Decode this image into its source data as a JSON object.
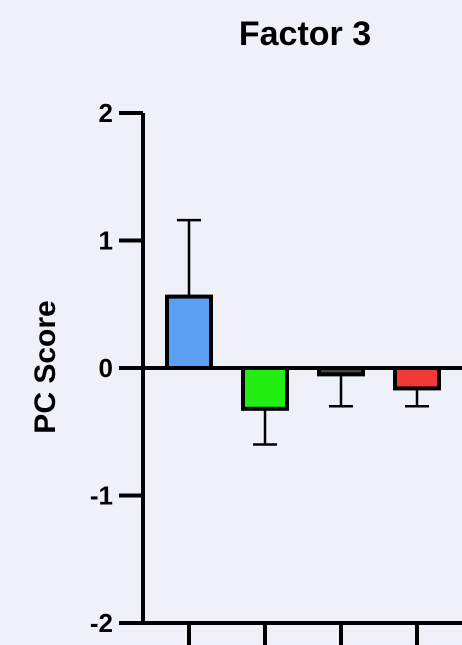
{
  "chart_data": {
    "type": "bar",
    "title": "Factor 3",
    "xlabel": "",
    "ylabel": "PC Score",
    "ylim": [
      -2,
      2
    ],
    "yticks": [
      2,
      1,
      0,
      -1,
      -2
    ],
    "ytick_labels": [
      "2",
      "1",
      "0",
      "-1",
      "-2"
    ],
    "grid": false,
    "legend": "none",
    "series": [
      {
        "values": [
          0.56,
          -0.32,
          -0.05,
          -0.16
        ],
        "errors": [
          0.6,
          0.28,
          0.25,
          0.14
        ],
        "colors": [
          "#5aa0f2",
          "#22ee11",
          "#444444",
          "#f03a3a"
        ]
      }
    ]
  }
}
